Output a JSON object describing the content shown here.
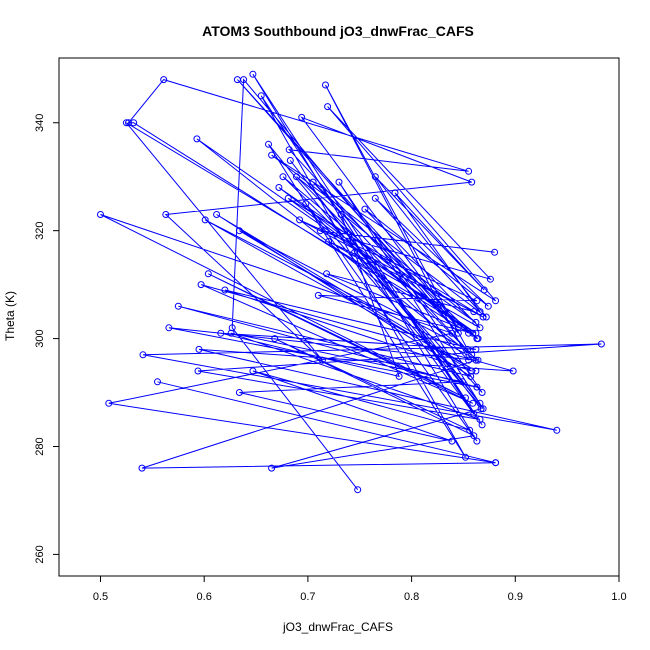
{
  "chart_data": {
    "type": "line",
    "title": "ATOM3 Southbound jO3_dnwFrac_CAFS",
    "xlabel": "jO3_dnwFrac_CAFS",
    "ylabel": "Theta (K)",
    "xlim": [
      0.46,
      1.0
    ],
    "ylim": [
      256,
      352
    ],
    "xticks": [
      0.5,
      0.6,
      0.7,
      0.8,
      0.9,
      1.0
    ],
    "xtick_labels": [
      "0.5",
      "0.6",
      "0.7",
      "0.8",
      "0.9",
      "1.0"
    ],
    "yticks": [
      260,
      280,
      300,
      320,
      340
    ],
    "ytick_labels": [
      "260",
      "280",
      "300",
      "320",
      "340"
    ],
    "grid": false,
    "legend": false,
    "marker": "open-circle",
    "color": "#0000ff",
    "series": [
      {
        "x": [
          0.748,
          0.627,
          0.638,
          0.845,
          0.682,
          0.855,
          0.561,
          0.527,
          0.532,
          0.855,
          0.632,
          0.845,
          0.694,
          0.858,
          0.563,
          0.714,
          0.525,
          0.862,
          0.593,
          0.864,
          0.601,
          0.862,
          0.612,
          0.857,
          0.575,
          0.863,
          0.566,
          0.862,
          0.54,
          0.881,
          0.555,
          0.881,
          0.508,
          0.839,
          0.5,
          0.852,
          0.604,
          0.859,
          0.597,
          0.898,
          0.595,
          0.94,
          0.541,
          0.983,
          0.594,
          0.866,
          0.626,
          0.849,
          0.634,
          0.839,
          0.647,
          0.856,
          0.668,
          0.86,
          0.665,
          0.867,
          0.683,
          0.866,
          0.662,
          0.852,
          0.655,
          0.868,
          0.647,
          0.863,
          0.698,
          0.869,
          0.73,
          0.868,
          0.745,
          0.86,
          0.732,
          0.788,
          0.616,
          0.862,
          0.62,
          0.858,
          0.634,
          0.854,
          0.717,
          0.855,
          0.676,
          0.863,
          0.705,
          0.858,
          0.689,
          0.862,
          0.672,
          0.864,
          0.681,
          0.869,
          0.692,
          0.863,
          0.71,
          0.859,
          0.718,
          0.86,
          0.72,
          0.866,
          0.755,
          0.874,
          0.765,
          0.866,
          0.784,
          0.87,
          0.765,
          0.872,
          0.665,
          0.881,
          0.719,
          0.876,
          0.712,
          0.88
        ],
        "y": [
          272,
          302,
          348,
          301,
          335,
          331,
          348,
          340,
          340,
          301,
          348,
          302,
          341,
          329,
          323,
          296,
          340,
          301,
          337,
          296,
          322,
          294,
          323,
          293,
          306,
          291,
          302,
          296,
          276,
          277,
          292,
          277,
          288,
          301,
          323,
          289,
          312,
          288,
          310,
          294,
          298,
          283,
          297,
          299,
          294,
          285,
          301,
          292,
          290,
          281,
          294,
          283,
          300,
          282,
          276,
          287,
          333,
          288,
          336,
          278,
          345,
          284,
          349,
          281,
          325,
          287,
          329,
          290,
          316,
          286,
          323,
          293,
          301,
          298,
          309,
          294,
          320,
          298,
          347,
          296,
          330,
          300,
          329,
          297,
          330,
          303,
          328,
          300,
          326,
          304,
          322,
          307,
          308,
          301,
          312,
          305,
          318,
          302,
          324,
          306,
          326,
          305,
          327,
          309,
          330,
          304,
          334,
          307,
          343,
          311,
          320,
          316
        ]
      }
    ]
  }
}
